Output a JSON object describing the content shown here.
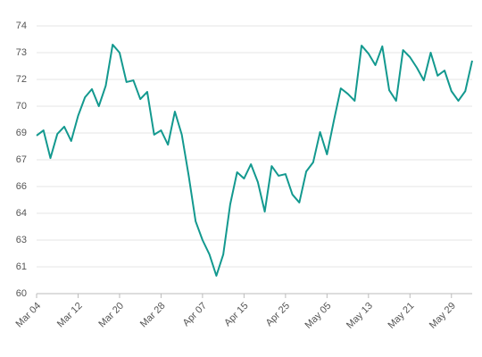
{
  "chart_data": {
    "type": "line",
    "categories": [
      "Mar 04",
      null,
      null,
      null,
      null,
      null,
      "Mar 12",
      null,
      null,
      null,
      null,
      null,
      "Mar 20",
      null,
      null,
      null,
      null,
      null,
      "Mar 28",
      null,
      null,
      null,
      null,
      null,
      "Apr 07",
      null,
      null,
      null,
      null,
      null,
      "Apr 15",
      null,
      null,
      null,
      null,
      null,
      "Apr 25",
      null,
      null,
      null,
      null,
      null,
      "May 05",
      null,
      null,
      null,
      null,
      null,
      "May 13",
      null,
      null,
      null,
      null,
      null,
      "May 21",
      null,
      null,
      null,
      null,
      null,
      "May 29",
      null,
      null,
      null
    ],
    "series": [
      {
        "color": "#13998f",
        "values": [
          68.5,
          68.78,
          67.29,
          68.59,
          68.98,
          68.21,
          69.56,
          70.56,
          71.0,
          70.08,
          71.18,
          73.39,
          72.96,
          71.38,
          71.47,
          70.46,
          70.85,
          68.55,
          68.78,
          68.01,
          69.79,
          68.55,
          66.34,
          63.89,
          62.88,
          62.11,
          60.96,
          62.11,
          64.8,
          66.53,
          66.19,
          66.96,
          66.0,
          64.41,
          66.86,
          66.34,
          66.43,
          65.33,
          64.9,
          66.57,
          67.06,
          68.69,
          67.49,
          69.31,
          71.04,
          70.75,
          70.37,
          73.34,
          72.91,
          72.29,
          73.3,
          70.94,
          70.37,
          73.1,
          72.72,
          72.15,
          71.47,
          72.96,
          71.72,
          72.0,
          70.89,
          70.37,
          70.89,
          72.53
        ]
      }
    ],
    "ylim": [
      60,
      74.4
    ],
    "yticks": [
      60,
      {
        "value": 61.44,
        "label": "61"
      },
      {
        "value": 62.88,
        "label": "63"
      },
      {
        "value": 64.32,
        "label": "64"
      },
      {
        "value": 65.76,
        "label": "66"
      },
      {
        "value": 67.2,
        "label": "67"
      },
      {
        "value": 68.64,
        "label": "69"
      },
      {
        "value": 70.08,
        "label": "70"
      },
      {
        "value": 71.52,
        "label": "72"
      },
      {
        "value": 72.96,
        "label": "73"
      },
      {
        "value": 74.4,
        "label": "74"
      }
    ],
    "grid": true
  }
}
